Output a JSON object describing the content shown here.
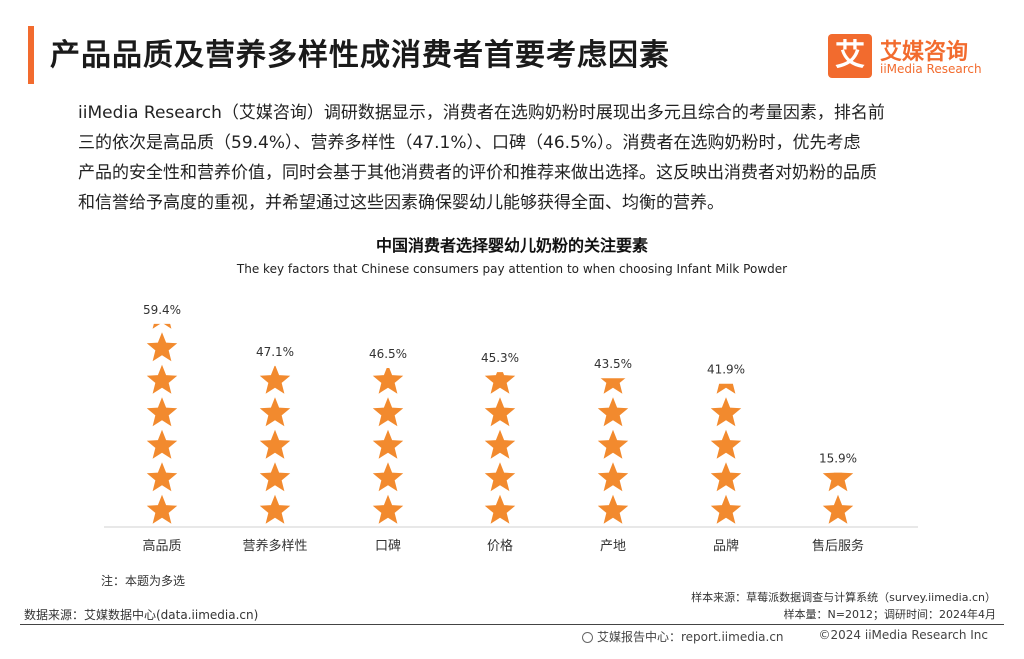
{
  "header": {
    "title": "产品品质及营养多样性成消费者首要考虑因素"
  },
  "logo": {
    "mark": "艾",
    "name_cn": "艾媒咨询",
    "name_en": "iiMedia Research"
  },
  "description": {
    "lines": [
      "iiMedia Research（艾媒咨询）调研数据显示，消费者在选购奶粉时展现出多元且综合的考量因素，排名前",
      "三的依次是高品质（59.4%）、营养多样性（47.1%）、口碑（46.5%）。消费者在选购奶粉时，优先考虑",
      "产品的安全性和营养价值，同时会基于其他消费者的评价和推荐来做出选择。这反映出消费者对奶粉的品质",
      "和信誉给予高度的重视，并希望通过这些因素确保婴幼儿能够获得全面、均衡的营养。"
    ]
  },
  "chart_data": {
    "type": "bar",
    "title": "中国消费者选择婴幼儿奶粉的关注要素",
    "subtitle": "The key factors that Chinese consumers pay attention to when choosing Infant Milk Powder",
    "categories": [
      "高品质",
      "营养多样性",
      "口碑",
      "价格",
      "产地",
      "品牌",
      "售后服务"
    ],
    "values": [
      59.4,
      47.1,
      46.5,
      45.3,
      43.5,
      41.9,
      15.9
    ],
    "value_labels": [
      "59.4%",
      "47.1%",
      "46.5%",
      "45.3%",
      "43.5%",
      "41.9%",
      "15.9%"
    ],
    "unit": "%",
    "grid": false,
    "legend": "none"
  },
  "notes": {
    "note": "注：本题为多选",
    "sample_source": "样本来源：草莓派数据调查与计算系统（survey.iimedia.cn）",
    "sample_size": "样本量：N=2012；调研时间：2024年4月",
    "data_source": "数据来源：艾媒数据中心(data.iimedia.cn)"
  },
  "footer": {
    "report": "艾媒报告中心：report.iimedia.cn",
    "copyright": "©2024  iiMedia Research  Inc"
  },
  "colors": {
    "accent": "#F26B2E",
    "star": "#F28A2E",
    "text": "#222222"
  }
}
